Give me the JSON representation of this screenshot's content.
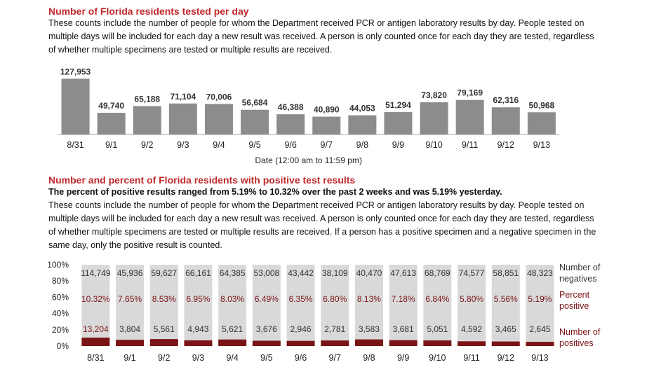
{
  "section1": {
    "title": "Number of Florida residents tested per day",
    "description": "These counts include the number of people for whom the Department received PCR or antigen laboratory results by day. People tested on multiple days will be included for each day a new result was received. A person is only counted once for each day they are tested, regardless of whether multiple specimens are tested or multiple results are received."
  },
  "section2": {
    "title": "Number and percent of Florida residents with positive test results",
    "summary": "The percent of positive results ranged from 5.19% to 10.32% over the past 2 weeks and was 5.19% yesterday.",
    "description": "These counts include the number of people for whom the Department received PCR or antigen laboratory results by day. People tested on multiple days will be included for each day a new result was received. A person is only counted once for each day they are tested, regardless of whether multiple specimens are tested or multiple results are received. If a person has a positive specimen and a negative specimen in the same day, only the positive result is counted."
  },
  "colors": {
    "heading": "#c0282b",
    "bar": "#8c8c8c",
    "negative": "#d9d9d9",
    "positive": "#7b1416",
    "percent_text": "#7b1416"
  },
  "chart_data": [
    {
      "type": "bar",
      "title": "",
      "xlabel": "Date (12:00 am to 11:59 pm)",
      "categories": [
        "8/31",
        "9/1",
        "9/2",
        "9/3",
        "9/4",
        "9/5",
        "9/6",
        "9/7",
        "9/8",
        "9/9",
        "9/10",
        "9/11",
        "9/12",
        "9/13"
      ],
      "values": [
        127953,
        49740,
        65188,
        71104,
        70006,
        56684,
        46388,
        40890,
        44053,
        51294,
        73820,
        79169,
        62316,
        50968
      ],
      "data_labels": [
        "127,953",
        "49,740",
        "65,188",
        "71,104",
        "70,006",
        "56,684",
        "46,388",
        "40,890",
        "44,053",
        "51,294",
        "73,820",
        "79,169",
        "62,316",
        "50,968"
      ],
      "ylim": [
        0,
        135000
      ],
      "grid": false
    },
    {
      "type": "bar",
      "stacked_percent": true,
      "title": "",
      "categories": [
        "8/31",
        "9/1",
        "9/2",
        "9/3",
        "9/4",
        "9/5",
        "9/6",
        "9/7",
        "9/8",
        "9/9",
        "9/10",
        "9/11",
        "9/12",
        "9/13"
      ],
      "yticks": [
        "100%",
        "80%",
        "60%",
        "40%",
        "20%",
        "0%"
      ],
      "series": [
        {
          "name": "Number of negatives",
          "values": [
            114749,
            45936,
            59627,
            66161,
            64385,
            53008,
            43442,
            38109,
            40470,
            47613,
            68769,
            74577,
            58851,
            48323
          ],
          "labels": [
            "114,749",
            "45,936",
            "59,627",
            "66,161",
            "64,385",
            "53,008",
            "43,442",
            "38,109",
            "40,470",
            "47,613",
            "68,769",
            "74,577",
            "58,851",
            "48,323"
          ]
        },
        {
          "name": "Percent positive",
          "values": [
            10.32,
            7.65,
            8.53,
            6.95,
            8.03,
            6.49,
            6.35,
            6.8,
            8.13,
            7.18,
            6.84,
            5.8,
            5.56,
            5.19
          ],
          "labels": [
            "10.32%",
            "7.65%",
            "8.53%",
            "6.95%",
            "8.03%",
            "6.49%",
            "6.35%",
            "6.80%",
            "8.13%",
            "7.18%",
            "6.84%",
            "5.80%",
            "5.56%",
            "5.19%"
          ]
        },
        {
          "name": "Number of positives",
          "values": [
            13204,
            3804,
            5561,
            4943,
            5621,
            3676,
            2946,
            2781,
            3583,
            3681,
            5051,
            4592,
            3465,
            2645
          ],
          "labels": [
            "13,204",
            "3,804",
            "5,561",
            "4,943",
            "5,621",
            "3,676",
            "2,946",
            "2,781",
            "3,583",
            "3,681",
            "5,051",
            "4,592",
            "3,465",
            "2,645"
          ]
        }
      ],
      "legend_lines": {
        "negatives": [
          "Number of",
          "negatives"
        ],
        "percent": [
          "Percent",
          "positive"
        ],
        "positives": [
          "Number of",
          "positives"
        ]
      },
      "legend_position": "right"
    }
  ]
}
